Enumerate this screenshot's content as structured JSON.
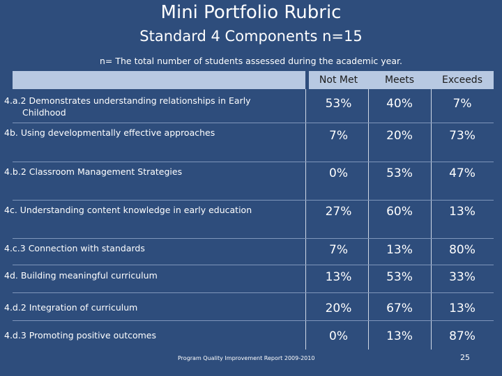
{
  "title": "Mini Portfolio Rubric",
  "subtitle": "Standard 4 Components  n=15",
  "note": "n= The total number of students  assessed during the academic year.",
  "columns": [
    "Not Met",
    "Meets",
    "Exceeds"
  ],
  "rows": [
    {
      "label": "4.a.2 Demonstrates understanding relationships in Early",
      "label_cont": "Childhood",
      "not_met": "53%",
      "meets": "40%",
      "exceeds": "7%"
    },
    {
      "label": "4b. Using developmentally  effective approaches",
      "label_cont": "",
      "not_met": "7%",
      "meets": "20%",
      "exceeds": "73%"
    },
    {
      "label": "4.b.2 Classroom Management Strategies",
      "label_cont": "",
      "not_met": "0%",
      "meets": "53%",
      "exceeds": "47%"
    },
    {
      "label": "4c. Understanding content knowledge in early education",
      "label_cont": "",
      "not_met": "27%",
      "meets": "60%",
      "exceeds": "13%"
    },
    {
      "label": "4.c.3 Connection with standards",
      "label_cont": "",
      "not_met": "7%",
      "meets": "13%",
      "exceeds": "80%"
    },
    {
      "label": "4d. Building meaningful curriculum",
      "label_cont": "",
      "not_met": "13%",
      "meets": "53%",
      "exceeds": "33%"
    },
    {
      "label": "4.d.2 Integration of curriculum",
      "label_cont": "",
      "not_met": "20%",
      "meets": "67%",
      "exceeds": "13%"
    },
    {
      "label": "4.d.3 Promoting positive outcomes",
      "label_cont": "",
      "not_met": "0%",
      "meets": "13%",
      "exceeds": "87%"
    }
  ],
  "footer": "Program Quality Improvement Report 2009-2010",
  "page_number": "25",
  "colors": {
    "background": "#2e4d7c",
    "header": "#b8c9e2",
    "text": "#ffffff"
  }
}
